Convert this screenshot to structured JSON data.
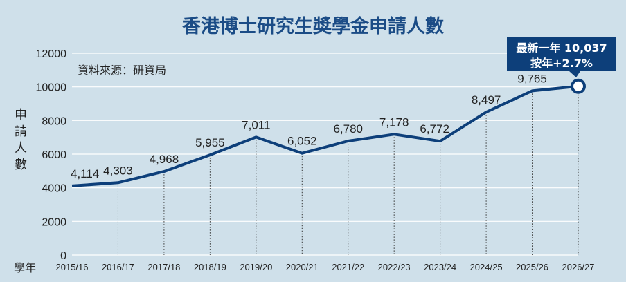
{
  "chart_data": {
    "type": "line",
    "title": "香港博士研究生獎學金申請人數",
    "source": "資料來源：研資局",
    "xlabel": "學年",
    "ylabel_chars": [
      "申",
      "請",
      "人",
      "數"
    ],
    "ylim": [
      0,
      12000
    ],
    "yticks": [
      0,
      2000,
      4000,
      6000,
      8000,
      10000,
      12000
    ],
    "categories": [
      "2015/16",
      "2016/17",
      "2017/18",
      "2018/19",
      "2019/20",
      "2020/21",
      "2021/22",
      "2022/23",
      "2023/24",
      "2024/25",
      "2025/26",
      "2026/27"
    ],
    "values": [
      4114,
      4303,
      4968,
      5955,
      7011,
      6052,
      6780,
      7178,
      6772,
      8497,
      9765,
      10037
    ],
    "data_labels": [
      "4,114",
      "4,303",
      "4,968",
      "5,955",
      "7,011",
      "6,052",
      "6,780",
      "7,178",
      "6,772",
      "8,497",
      "9,765",
      ""
    ],
    "grid": true,
    "callout": {
      "line1": "最新一年 10,037",
      "line2": "按年+2.7%"
    },
    "colors": {
      "line": "#0d3f7a",
      "callout_bg": "#0d3f7a",
      "title": "#1b4c86",
      "background": "#cfe0ea"
    }
  }
}
